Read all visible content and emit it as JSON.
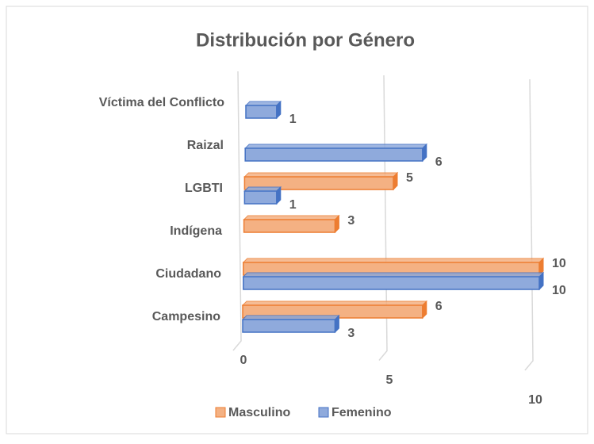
{
  "chart_data": {
    "type": "bar3d",
    "orientation": "horizontal",
    "title": "Distribución por Género",
    "categories": [
      "Campesino",
      "Ciudadano",
      "Indígena",
      "LGBTI",
      "Raizal",
      "Víctima del Conflicto"
    ],
    "series": [
      {
        "name": "Masculino",
        "color": "#f4b183",
        "edge": "#ed7d31",
        "values": [
          6,
          10,
          3,
          5,
          null,
          null
        ]
      },
      {
        "name": "Femenino",
        "color": "#8faadc",
        "edge": "#4472c4",
        "values": [
          3,
          10,
          null,
          1,
          6,
          1
        ]
      }
    ],
    "xlim": [
      0,
      10
    ],
    "xticks": [
      0,
      5,
      10
    ],
    "grid": true,
    "legend": "bottom"
  }
}
